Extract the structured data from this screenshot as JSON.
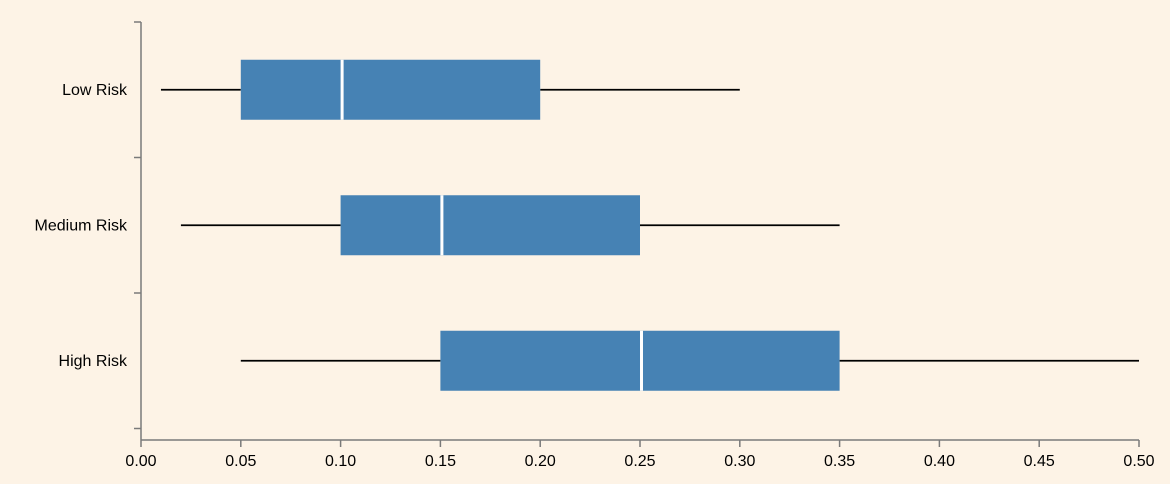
{
  "chart_data": {
    "type": "boxplot",
    "orientation": "horizontal",
    "title": "",
    "xlabel": "",
    "ylabel": "",
    "xlim": [
      0.0,
      0.5
    ],
    "x_ticks": [
      "0.00",
      "0.05",
      "0.10",
      "0.15",
      "0.20",
      "0.25",
      "0.30",
      "0.35",
      "0.40",
      "0.45",
      "0.50"
    ],
    "categories": [
      "Low Risk",
      "Medium Risk",
      "High Risk"
    ],
    "boxes": [
      {
        "category": "Low Risk",
        "min": 0.01,
        "q1": 0.05,
        "median": 0.1,
        "q3": 0.2,
        "max": 0.3
      },
      {
        "category": "Medium Risk",
        "min": 0.02,
        "q1": 0.1,
        "median": 0.15,
        "q3": 0.25,
        "max": 0.35
      },
      {
        "category": "High Risk",
        "min": 0.05,
        "q1": 0.15,
        "median": 0.25,
        "q3": 0.35,
        "max": 0.5
      }
    ],
    "grid": false,
    "legend": "none",
    "colors": {
      "background": "#fdf3e6",
      "box_fill": "#4682b4",
      "median": "#ffffff",
      "whisker": "#000000",
      "axis": "#7a7a7a"
    }
  }
}
